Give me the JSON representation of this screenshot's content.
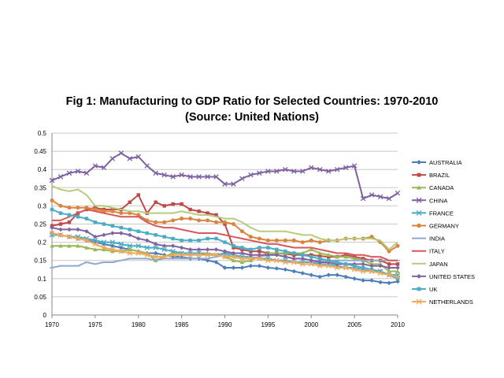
{
  "chart_data": {
    "type": "line",
    "title": "Fig 1: Manufacturing to GDP Ratio for Selected Countries: 1970-2010",
    "subtitle": "(Source: United Nations)",
    "xlabel": "",
    "ylabel": "",
    "xlim": [
      1970,
      2010
    ],
    "ylim": [
      0,
      0.5
    ],
    "x_ticks": [
      "1970",
      "1975",
      "1980",
      "1985",
      "1990",
      "1995",
      "2000",
      "2005",
      "2010"
    ],
    "y_ticks": [
      "0",
      "0.05",
      "0.1",
      "0.15",
      "0.2",
      "0.25",
      "0.3",
      "0.35",
      "0.4",
      "0.45",
      "0.5"
    ],
    "grid": true,
    "legend_position": "right",
    "x": [
      1970,
      1971,
      1972,
      1973,
      1974,
      1975,
      1976,
      1977,
      1978,
      1979,
      1980,
      1981,
      1982,
      1983,
      1984,
      1985,
      1986,
      1987,
      1988,
      1989,
      1990,
      1991,
      1992,
      1993,
      1994,
      1995,
      1996,
      1997,
      1998,
      1999,
      2000,
      2001,
      2002,
      2003,
      2004,
      2005,
      2006,
      2007,
      2008,
      2009,
      2010
    ],
    "series": [
      {
        "name": "AUSTRALIA",
        "color": "#4a7ebb",
        "marker": "diamond",
        "values": [
          0.225,
          0.22,
          0.215,
          0.21,
          0.205,
          0.2,
          0.195,
          0.19,
          0.185,
          0.18,
          0.175,
          0.17,
          0.17,
          0.165,
          0.16,
          0.16,
          0.155,
          0.155,
          0.15,
          0.145,
          0.13,
          0.13,
          0.13,
          0.135,
          0.135,
          0.13,
          0.128,
          0.125,
          0.12,
          0.115,
          0.11,
          0.105,
          0.11,
          0.11,
          0.105,
          0.1,
          0.095,
          0.095,
          0.09,
          0.088,
          0.092
        ]
      },
      {
        "name": "BRAZIL",
        "color": "#be4b48",
        "marker": "square",
        "values": [
          0.245,
          0.25,
          0.255,
          0.28,
          0.29,
          0.295,
          0.29,
          0.29,
          0.29,
          0.31,
          0.33,
          0.28,
          0.31,
          0.3,
          0.305,
          0.305,
          0.29,
          0.285,
          0.28,
          0.275,
          0.25,
          0.185,
          0.18,
          0.175,
          0.175,
          0.17,
          0.17,
          0.168,
          0.165,
          0.165,
          0.165,
          0.162,
          0.16,
          0.16,
          0.165,
          0.16,
          0.155,
          0.15,
          0.15,
          0.14,
          0.14
        ]
      },
      {
        "name": "CANADA",
        "color": "#98b954",
        "marker": "triangle",
        "values": [
          0.19,
          0.19,
          0.19,
          0.19,
          0.185,
          0.18,
          0.18,
          0.175,
          0.175,
          0.18,
          0.175,
          0.17,
          0.15,
          0.16,
          0.17,
          0.17,
          0.17,
          0.17,
          0.17,
          0.165,
          0.16,
          0.15,
          0.145,
          0.15,
          0.16,
          0.17,
          0.17,
          0.17,
          0.17,
          0.17,
          0.18,
          0.17,
          0.165,
          0.16,
          0.16,
          0.155,
          0.15,
          0.14,
          0.14,
          0.12,
          0.12
        ]
      },
      {
        "name": "CHINA",
        "color": "#7d60a0",
        "marker": "x",
        "values": [
          0.37,
          0.38,
          0.39,
          0.395,
          0.39,
          0.41,
          0.405,
          0.43,
          0.445,
          0.43,
          0.435,
          0.41,
          0.39,
          0.385,
          0.38,
          0.385,
          0.38,
          0.38,
          0.38,
          0.38,
          0.36,
          0.36,
          0.375,
          0.385,
          0.39,
          0.395,
          0.395,
          0.4,
          0.395,
          0.395,
          0.405,
          0.4,
          0.395,
          0.4,
          0.405,
          0.41,
          0.32,
          0.33,
          0.325,
          0.32,
          0.335
        ]
      },
      {
        "name": "FRANCE",
        "color": "#46aac5",
        "marker": "x",
        "values": [
          0.22,
          0.22,
          0.215,
          0.215,
          0.21,
          0.205,
          0.2,
          0.2,
          0.195,
          0.19,
          0.19,
          0.185,
          0.185,
          0.18,
          0.175,
          0.17,
          0.17,
          0.17,
          0.165,
          0.165,
          0.17,
          0.165,
          0.16,
          0.16,
          0.155,
          0.155,
          0.15,
          0.15,
          0.145,
          0.145,
          0.145,
          0.14,
          0.14,
          0.135,
          0.13,
          0.13,
          0.125,
          0.12,
          0.12,
          0.11,
          0.11
        ]
      },
      {
        "name": "GERMANY",
        "color": "#db843d",
        "marker": "circle",
        "values": [
          0.315,
          0.3,
          0.295,
          0.295,
          0.295,
          0.29,
          0.285,
          0.285,
          0.28,
          0.28,
          0.275,
          0.26,
          0.255,
          0.255,
          0.26,
          0.265,
          0.265,
          0.26,
          0.26,
          0.255,
          0.255,
          0.25,
          0.23,
          0.215,
          0.21,
          0.205,
          0.205,
          0.205,
          0.205,
          0.2,
          0.205,
          0.2,
          0.205,
          0.205,
          0.21,
          0.21,
          0.21,
          0.215,
          0.2,
          0.175,
          0.19
        ]
      },
      {
        "name": "INDIA",
        "color": "#91a8d0",
        "marker": "dash",
        "values": [
          0.13,
          0.135,
          0.135,
          0.135,
          0.145,
          0.14,
          0.145,
          0.145,
          0.15,
          0.155,
          0.155,
          0.155,
          0.15,
          0.155,
          0.155,
          0.155,
          0.155,
          0.155,
          0.155,
          0.16,
          0.165,
          0.16,
          0.155,
          0.155,
          0.16,
          0.165,
          0.165,
          0.16,
          0.155,
          0.155,
          0.15,
          0.15,
          0.15,
          0.15,
          0.15,
          0.15,
          0.15,
          0.15,
          0.15,
          0.15,
          0.15
        ]
      },
      {
        "name": "ITALY",
        "color": "#d6595a",
        "marker": "none",
        "values": [
          0.26,
          0.26,
          0.27,
          0.28,
          0.29,
          0.285,
          0.28,
          0.275,
          0.27,
          0.27,
          0.27,
          0.255,
          0.245,
          0.24,
          0.24,
          0.235,
          0.23,
          0.225,
          0.225,
          0.225,
          0.22,
          0.215,
          0.21,
          0.205,
          0.2,
          0.195,
          0.195,
          0.19,
          0.185,
          0.185,
          0.185,
          0.18,
          0.175,
          0.17,
          0.17,
          0.165,
          0.165,
          0.16,
          0.16,
          0.15,
          0.15
        ]
      },
      {
        "name": "JAPAN",
        "color": "#b5cc7d",
        "marker": "none",
        "values": [
          0.355,
          0.345,
          0.34,
          0.345,
          0.33,
          0.3,
          0.3,
          0.295,
          0.29,
          0.285,
          0.285,
          0.28,
          0.28,
          0.28,
          0.28,
          0.285,
          0.28,
          0.275,
          0.275,
          0.27,
          0.265,
          0.265,
          0.255,
          0.24,
          0.23,
          0.23,
          0.23,
          0.23,
          0.225,
          0.22,
          0.22,
          0.21,
          0.205,
          0.205,
          0.21,
          0.21,
          0.21,
          0.21,
          0.205,
          0.18,
          0.2
        ]
      },
      {
        "name": "UNITED STATES",
        "color": "#8064a2",
        "marker": "diamond",
        "values": [
          0.24,
          0.235,
          0.235,
          0.235,
          0.23,
          0.215,
          0.22,
          0.225,
          0.225,
          0.22,
          0.21,
          0.205,
          0.195,
          0.19,
          0.19,
          0.185,
          0.18,
          0.18,
          0.18,
          0.18,
          0.175,
          0.17,
          0.17,
          0.165,
          0.165,
          0.165,
          0.165,
          0.16,
          0.155,
          0.155,
          0.15,
          0.145,
          0.145,
          0.14,
          0.14,
          0.14,
          0.14,
          0.135,
          0.135,
          0.13,
          0.13
        ]
      },
      {
        "name": "UK",
        "color": "#4bacc6",
        "marker": "square",
        "values": [
          0.29,
          0.28,
          0.275,
          0.27,
          0.265,
          0.255,
          0.25,
          0.245,
          0.24,
          0.235,
          0.23,
          0.225,
          0.22,
          0.215,
          0.21,
          0.205,
          0.205,
          0.205,
          0.21,
          0.21,
          0.2,
          0.19,
          0.185,
          0.18,
          0.185,
          0.185,
          0.18,
          0.175,
          0.17,
          0.165,
          0.16,
          0.155,
          0.15,
          0.145,
          0.14,
          0.135,
          0.13,
          0.125,
          0.12,
          0.11,
          0.1
        ]
      },
      {
        "name": "NETHERLANDS",
        "color": "#f5a759",
        "marker": "x",
        "values": [
          0.225,
          0.22,
          0.215,
          0.21,
          0.205,
          0.195,
          0.185,
          0.18,
          0.175,
          0.17,
          0.17,
          0.165,
          0.16,
          0.16,
          0.165,
          0.165,
          0.165,
          0.165,
          0.165,
          0.165,
          0.16,
          0.16,
          0.155,
          0.155,
          0.155,
          0.15,
          0.15,
          0.145,
          0.145,
          0.14,
          0.14,
          0.135,
          0.135,
          0.13,
          0.13,
          0.125,
          0.12,
          0.12,
          0.115,
          0.11,
          0.105
        ]
      }
    ]
  }
}
